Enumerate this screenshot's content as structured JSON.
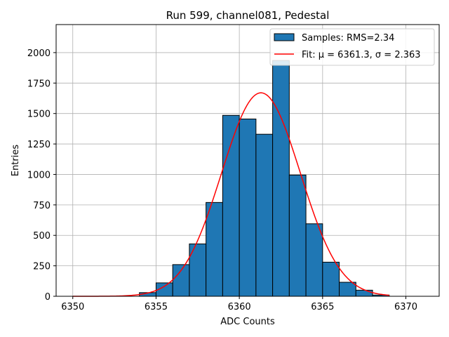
{
  "chart_data": {
    "type": "bar",
    "title": "Run 599, channel081, Pedestal",
    "xlabel": "ADC Counts",
    "ylabel": "Entries",
    "xlim": [
      6349,
      6372
    ],
    "ylim": [
      0,
      2230
    ],
    "xticks": [
      6350,
      6355,
      6360,
      6365,
      6370
    ],
    "yticks": [
      0,
      250,
      500,
      750,
      1000,
      1250,
      1500,
      1750,
      2000
    ],
    "grid": true,
    "legend_position": "top-right",
    "bar_color": "#1f77b4",
    "fit_color": "#ff0000",
    "bins": [
      {
        "left": 6354,
        "right": 6355,
        "count": 30
      },
      {
        "left": 6355,
        "right": 6356,
        "count": 110
      },
      {
        "left": 6356,
        "right": 6357,
        "count": 260
      },
      {
        "left": 6357,
        "right": 6358,
        "count": 430
      },
      {
        "left": 6358,
        "right": 6359,
        "count": 770
      },
      {
        "left": 6359,
        "right": 6360,
        "count": 1485
      },
      {
        "left": 6360,
        "right": 6361,
        "count": 1455
      },
      {
        "left": 6361,
        "right": 6362,
        "count": 1330
      },
      {
        "left": 6362,
        "right": 6363,
        "count": 1935
      },
      {
        "left": 6363,
        "right": 6364,
        "count": 995
      },
      {
        "left": 6364,
        "right": 6365,
        "count": 595
      },
      {
        "left": 6365,
        "right": 6366,
        "count": 280
      },
      {
        "left": 6366,
        "right": 6367,
        "count": 115
      },
      {
        "left": 6367,
        "right": 6368,
        "count": 50
      },
      {
        "left": 6368,
        "right": 6369,
        "count": 10
      }
    ],
    "fit": {
      "mu": 6361.3,
      "sigma": 2.363,
      "amplitude": 1670,
      "x_range": [
        6350,
        6369
      ]
    },
    "legend": [
      {
        "kind": "patch",
        "label": "Samples: RMS=2.34"
      },
      {
        "kind": "line",
        "label": "Fit: μ = 6361.3, σ = 2.363"
      }
    ]
  }
}
